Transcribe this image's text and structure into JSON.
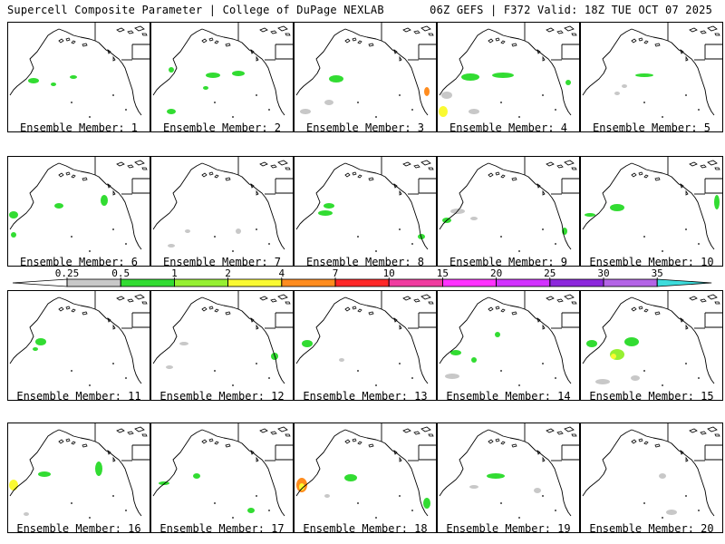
{
  "header": {
    "left": "Supercell Composite Parameter | College of DuPage NEXLAB",
    "right": "06Z GEFS | F372 Valid: 18Z TUE OCT 07 2025"
  },
  "caption_prefix": "Ensemble Member: ",
  "members": [
    {
      "number": "1",
      "label": "Ensemble Member: 1"
    },
    {
      "number": "2",
      "label": "Ensemble Member: 2"
    },
    {
      "number": "3",
      "label": "Ensemble Member: 3"
    },
    {
      "number": "4",
      "label": "Ensemble Member: 4"
    },
    {
      "number": "5",
      "label": "Ensemble Member: 5"
    },
    {
      "number": "6",
      "label": "Ensemble Member: 6"
    },
    {
      "number": "7",
      "label": "Ensemble Member: 7"
    },
    {
      "number": "8",
      "label": "Ensemble Member: 8"
    },
    {
      "number": "9",
      "label": "Ensemble Member: 9"
    },
    {
      "number": "10",
      "label": "Ensemble Member: 10"
    },
    {
      "number": "11",
      "label": "Ensemble Member: 11"
    },
    {
      "number": "12",
      "label": "Ensemble Member: 12"
    },
    {
      "number": "13",
      "label": "Ensemble Member: 13"
    },
    {
      "number": "14",
      "label": "Ensemble Member: 14"
    },
    {
      "number": "15",
      "label": "Ensemble Member: 15"
    },
    {
      "number": "16",
      "label": "Ensemble Member: 16"
    },
    {
      "number": "17",
      "label": "Ensemble Member: 17"
    },
    {
      "number": "18",
      "label": "Ensemble Member: 18"
    },
    {
      "number": "19",
      "label": "Ensemble Member: 19"
    },
    {
      "number": "20",
      "label": "Ensemble Member: 20"
    }
  ],
  "colorbar": {
    "thresholds": [
      "0.25",
      "0.5",
      "1",
      "2",
      "4",
      "7",
      "10",
      "15",
      "20",
      "25",
      "30",
      "35"
    ],
    "colors": [
      "#ffffff",
      "#c8c8c8",
      "#32dc32",
      "#96f032",
      "#fafa32",
      "#ff8c1e",
      "#ff2828",
      "#f03ca0",
      "#ff32ff",
      "#d232ff",
      "#8c28dc",
      "#b464e6",
      "#3cdcdc"
    ]
  }
}
